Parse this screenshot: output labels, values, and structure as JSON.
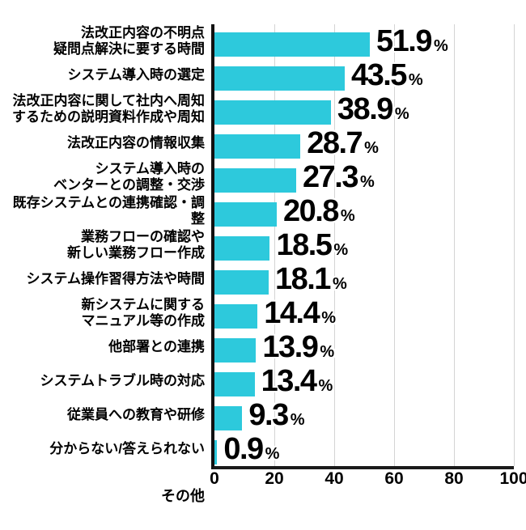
{
  "chart_data": {
    "type": "bar",
    "orientation": "horizontal",
    "title": "",
    "categories": [
      "法改正内容の不明点\n疑問点解決に要する時間",
      "システム導入時の選定",
      "法改正内容に関して社内へ周知\nするための説明資料作成や周知",
      "法改正内容の情報収集",
      "システム導入時の\nベンターとの調整・交渉",
      "既存システムとの連携確認・調整",
      "業務フローの確認や\n新しい業務フロー作成",
      "システム操作習得方法や時間",
      "新システムに関する\nマニュアル等の作成",
      "他部署との連携",
      "システムトラブル時の対応",
      "従業員への教育や研修",
      "分からない/答えられない"
    ],
    "values": [
      51.9,
      43.5,
      38.9,
      28.7,
      27.3,
      20.8,
      18.5,
      18.1,
      14.4,
      13.9,
      13.4,
      9.3,
      0.9
    ],
    "value_suffix": "%",
    "xlim": [
      0,
      100
    ],
    "x_ticks": [
      "0",
      "20",
      "40",
      "60",
      "80",
      "100"
    ],
    "extra_label": "その他",
    "grid": "vertical",
    "colors": {
      "bar": "#2dc9dc",
      "gridline": "#d4d4d4",
      "axis": "#111111",
      "text": "#000000",
      "background": "#ffffff"
    }
  }
}
